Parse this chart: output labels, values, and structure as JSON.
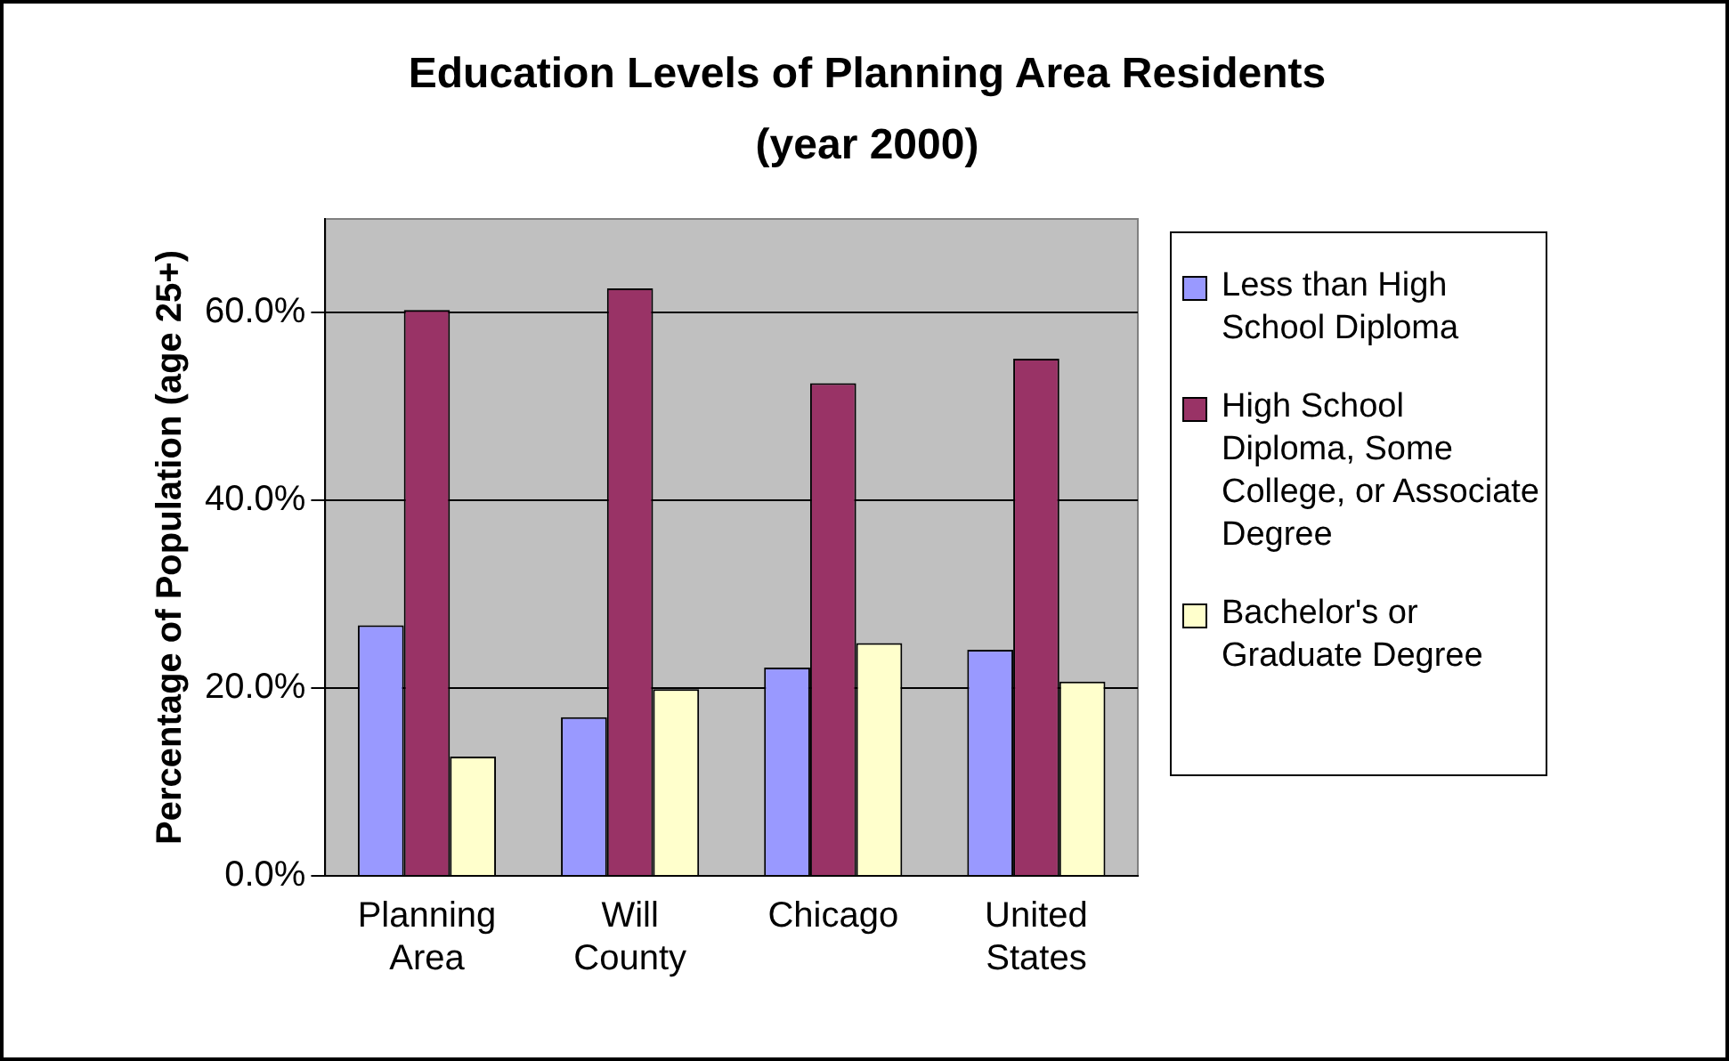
{
  "chart_data": {
    "type": "bar",
    "title": "Education Levels of Planning Area Residents",
    "subtitle": "(year 2000)",
    "ylabel": "Percentage of Population (age 25+)",
    "categories": [
      "Planning Area",
      "Will County",
      "Chicago",
      "United States"
    ],
    "series": [
      {
        "name": "Less than High School Diploma",
        "color": "#9999ff",
        "values": [
          26.7,
          16.9,
          22.2,
          24.1
        ]
      },
      {
        "name": "High School Diploma, Some College, or Associate Degree",
        "color": "#993366",
        "values": [
          60.3,
          62.6,
          52.5,
          55.1
        ]
      },
      {
        "name": "Bachelor's or Graduate Degree",
        "color": "#ffffcc",
        "values": [
          12.7,
          19.9,
          24.8,
          20.7
        ]
      }
    ],
    "ylim": [
      0,
      70
    ],
    "yticks": [
      {
        "value": 0,
        "label": "0.0%"
      },
      {
        "value": 20,
        "label": "20.0%"
      },
      {
        "value": 40,
        "label": "40.0%"
      },
      {
        "value": 60,
        "label": "60.0%"
      }
    ],
    "grid": "y",
    "legend": "right"
  }
}
